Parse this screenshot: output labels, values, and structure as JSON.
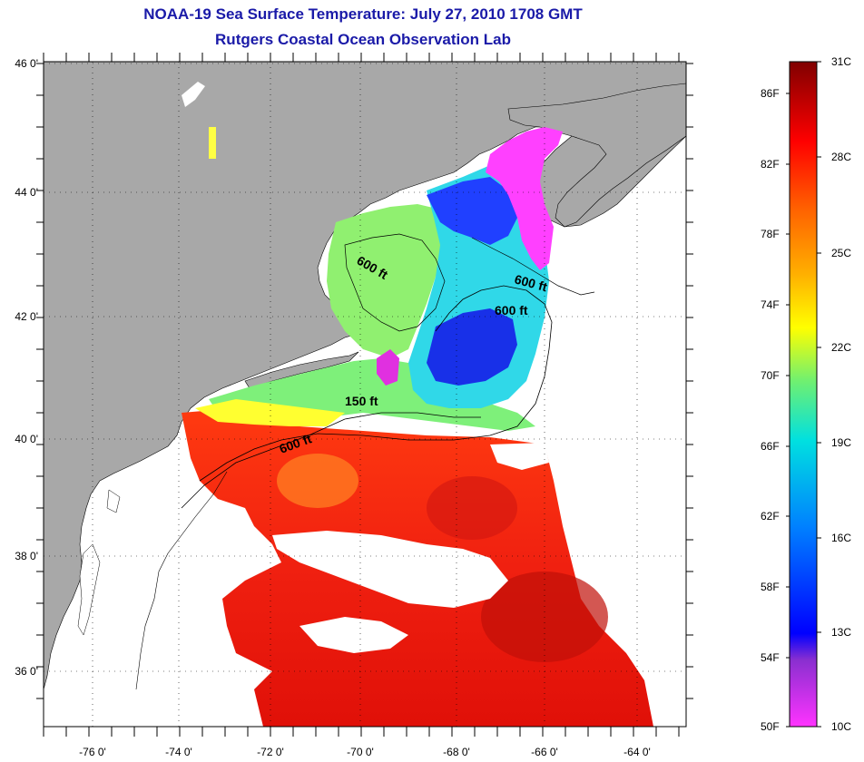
{
  "header": {
    "title": "NOAA-19 Sea Surface Temperature:  July 27, 2010 1708 GMT",
    "subtitle": "Rutgers Coastal Ocean Observation Lab"
  },
  "axes": {
    "lat_labels": [
      "46 0'",
      "44 0'",
      "42 0'",
      "40 0'",
      "38 0'",
      "36 0'"
    ],
    "lon_labels": [
      "-76 0'",
      "-74 0'",
      "-72 0'",
      "-70 0'",
      "-68 0'",
      "-66 0'",
      "-64 0'"
    ]
  },
  "contours": {
    "labels": [
      "600 ft",
      "600 ft",
      "600 ft",
      "150 ft",
      "600 ft"
    ]
  },
  "colorbar": {
    "fahrenheit": [
      "86F",
      "82F",
      "78F",
      "74F",
      "70F",
      "66F",
      "62F",
      "58F",
      "54F",
      "50F"
    ],
    "celsius": [
      "31C",
      "28C",
      "25C",
      "22C",
      "19C",
      "16C",
      "13C",
      "10C"
    ],
    "stops": [
      "#ff33ff",
      "#7f2fd0",
      "#0000ff",
      "#0080ff",
      "#00e0e0",
      "#60f080",
      "#ffff00",
      "#ffb000",
      "#ff6000",
      "#ff0000",
      "#c00000",
      "#800000"
    ]
  },
  "colors": {
    "land": "#a8a8a8",
    "title": "#1a1aa8",
    "cloud": "#ffffff"
  }
}
